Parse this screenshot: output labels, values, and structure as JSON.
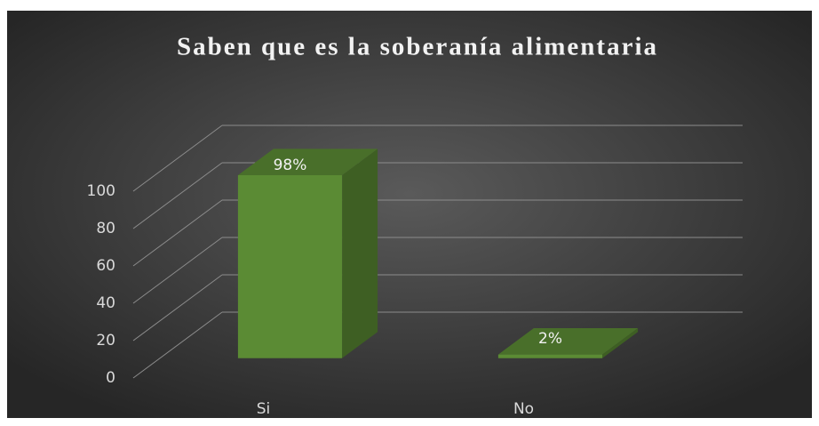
{
  "chart_data": {
    "type": "bar3d",
    "title": "Saben que es la soberanía alimentaria",
    "categories": [
      "Si",
      "No"
    ],
    "values": [
      98,
      2
    ],
    "value_labels": [
      "98%",
      "2%"
    ],
    "color": "#5b8b34",
    "ylim": [
      0,
      100
    ],
    "yticks": [
      0,
      20,
      40,
      60,
      80,
      100
    ],
    "grid": true
  }
}
